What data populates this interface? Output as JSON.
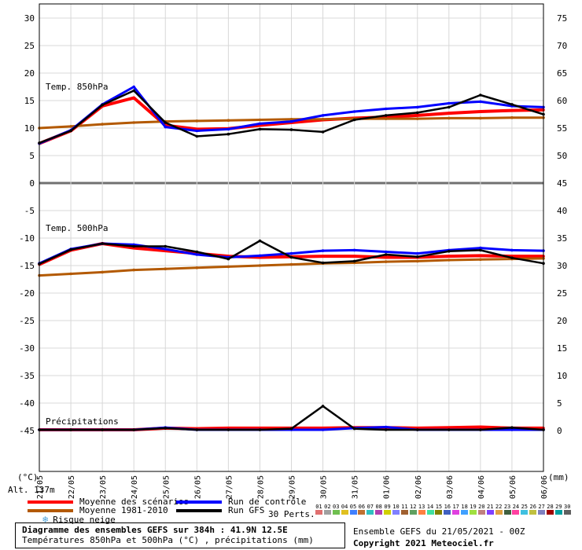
{
  "chart_data": {
    "type": "line",
    "title": "Diagramme des ensembles GEFS sur 384h : 41.9N 12.5E",
    "subtitle": "Températures 850hPa et 500hPa (°C) , précipitations (mm)",
    "x": [
      "21/05",
      "22/05",
      "23/05",
      "24/05",
      "25/05",
      "26/05",
      "27/05",
      "28/05",
      "29/05",
      "30/05",
      "31/05",
      "01/06",
      "02/06",
      "03/06",
      "04/06",
      "05/06",
      "06/06"
    ],
    "xlabel": "",
    "ylabel_left": "(°C)",
    "ylabel_right": "(mm)",
    "left_ticks": [
      "30",
      "25",
      "20",
      "15",
      "10",
      "5",
      "0",
      "-5",
      "-10",
      "-15",
      "-20",
      "-25",
      "-30",
      "-35",
      "-40",
      "-45"
    ],
    "right_ticks": [
      "75",
      "70",
      "65",
      "60",
      "55",
      "50",
      "45",
      "40",
      "35",
      "30",
      "25",
      "20",
      "15",
      "10",
      "5",
      "0"
    ],
    "ylim_left": [
      -45,
      30
    ],
    "ylim_right": [
      0,
      75
    ],
    "altitude_label": "Alt. 137m",
    "panel_labels": [
      "Temp. 850hPa",
      "Temp. 500hPa",
      "Précipitations"
    ],
    "series": [
      {
        "name": "Moyenne des scénarios",
        "color": "#ff0000",
        "t850": [
          7.2,
          9.5,
          14,
          15.5,
          10.5,
          9.8,
          9.9,
          10.5,
          11,
          11.5,
          11.8,
          12,
          12.3,
          12.7,
          13,
          13.2,
          13.3
        ],
        "t500": [
          -14.8,
          -12.2,
          -11,
          -11.8,
          -12.3,
          -12.8,
          -13.3,
          -13.5,
          -13.4,
          -13.3,
          -13.3,
          -13.5,
          -13.5,
          -13.3,
          -13.2,
          -13.3,
          -13.3
        ],
        "precip": [
          0,
          0,
          0,
          0,
          0.3,
          0.2,
          0.3,
          0.3,
          0.3,
          0.3,
          0.4,
          0.4,
          0.3,
          0.4,
          0.5,
          0.3,
          0.3
        ]
      },
      {
        "name": "Moyenne 1981-2010",
        "color": "#b35900",
        "t850": [
          10,
          10.3,
          10.7,
          11,
          11.2,
          11.3,
          11.4,
          11.5,
          11.6,
          11.6,
          11.7,
          11.7,
          11.7,
          11.8,
          11.8,
          11.9,
          11.9
        ],
        "t500": [
          -16.8,
          -16.5,
          -16.2,
          -15.8,
          -15.6,
          -15.4,
          -15.2,
          -15,
          -14.8,
          -14.6,
          -14.5,
          -14.3,
          -14.2,
          -14,
          -13.9,
          -13.8,
          -13.7
        ]
      },
      {
        "name": "Run de contrôle",
        "color": "#0000ff",
        "t850": [
          7.2,
          9.6,
          14.3,
          17.5,
          10.2,
          9.5,
          9.8,
          10.8,
          11.2,
          12.3,
          13,
          13.5,
          13.8,
          14.5,
          14.8,
          14,
          13.8
        ],
        "t500": [
          -14.6,
          -12,
          -11,
          -11.2,
          -12,
          -13,
          -13.5,
          -13.2,
          -12.8,
          -12.3,
          -12.2,
          -12.5,
          -12.8,
          -12.2,
          -11.8,
          -12.2,
          -12.3
        ],
        "precip": [
          0,
          0,
          0,
          0,
          0.4,
          0,
          0,
          0,
          0,
          0,
          0.3,
          0.5,
          0,
          0,
          0,
          0,
          0
        ]
      },
      {
        "name": "Run GFS",
        "color": "#000000",
        "t850": [
          7.3,
          9.5,
          14.2,
          16.8,
          11,
          8.5,
          8.9,
          9.8,
          9.7,
          9.3,
          11.5,
          12.3,
          12.8,
          13.8,
          16,
          14.3,
          12.5
        ],
        "t500": [
          -14.7,
          -12.1,
          -11,
          -11.5,
          -11.5,
          -12.5,
          -13.8,
          -10.5,
          -13.5,
          -14.5,
          -14.2,
          -13,
          -13.4,
          -12.4,
          -12.2,
          -13.6,
          -14.6
        ],
        "precip": [
          0,
          0,
          0,
          0,
          0.3,
          0,
          0,
          0,
          0.2,
          4.3,
          0.2,
          0,
          0,
          0,
          0,
          0.4,
          0
        ]
      }
    ]
  },
  "legend": {
    "items": [
      {
        "label": "Moyenne des scénarios",
        "color": "#ff0000"
      },
      {
        "label": "Run de contrôle",
        "color": "#0000ff"
      },
      {
        "label": "Moyenne 1981-2010",
        "color": "#b35900"
      },
      {
        "label": "Run GFS",
        "color": "#000000"
      }
    ],
    "snow_label": "Risque neige",
    "perts_label": "30 Perts.",
    "pert_numbers": [
      "01",
      "02",
      "03",
      "04",
      "05",
      "06",
      "07",
      "08",
      "09",
      "10",
      "11",
      "12",
      "13",
      "14",
      "15",
      "16",
      "17",
      "18",
      "19",
      "20",
      "21",
      "22",
      "23",
      "24",
      "25",
      "26",
      "27",
      "28",
      "29",
      "30"
    ],
    "pert_colors": [
      "#e07070",
      "#a0a0a0",
      "#6fbf4f",
      "#e0c020",
      "#4080ff",
      "#c07030",
      "#30c0c0",
      "#b040b0",
      "#d0d000",
      "#8080ff",
      "#a06030",
      "#60a060",
      "#ff8040",
      "#40e0a0",
      "#808000",
      "#4060c0",
      "#e040e0",
      "#40a0ff",
      "#a0e040",
      "#c08080",
      "#8040ff",
      "#e0a040",
      "#406040",
      "#ff40a0",
      "#40c0e0",
      "#c0c040",
      "#8080c0",
      "#a00000",
      "#00a0a0",
      "#606060"
    ]
  },
  "footer": {
    "title": "Diagramme des ensembles GEFS sur 384h : 41.9N 12.5E",
    "subtitle": "Températures 850hPa et 500hPa (°C) , précipitations (mm)",
    "run_info": "Ensemble GEFS du 21/05/2021 - 00Z",
    "copyright": "Copyright 2021 Meteociel.fr"
  }
}
